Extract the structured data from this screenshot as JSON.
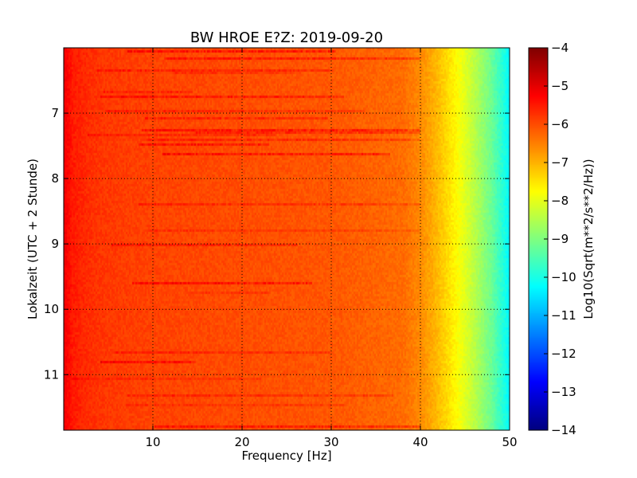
{
  "chart_data": {
    "type": "heatmap",
    "title": "BW HROE E?Z: 2019-09-20",
    "xlabel": "Frequency [Hz]",
    "ylabel": "Lokalzeit (UTC + 2 Stunde)",
    "xlim": [
      0,
      50
    ],
    "ylim": [
      11.85,
      6.0
    ],
    "x_ticks": [
      10,
      20,
      30,
      40,
      50
    ],
    "y_ticks": [
      7,
      8,
      9,
      10,
      11
    ],
    "x_tick_labels": [
      "10",
      "20",
      "30",
      "40",
      "50"
    ],
    "y_tick_labels": [
      "7",
      "8",
      "9",
      "10",
      "11"
    ],
    "grid": true,
    "colormap": "jet",
    "colorbar": {
      "label": "Log10(Sqrt(m**2/s**2/Hz))",
      "range": [
        -14,
        -4
      ],
      "ticks": [
        -4,
        -5,
        -6,
        -7,
        -8,
        -9,
        -10,
        -11,
        -12,
        -13,
        -14
      ],
      "tick_labels": [
        "−4",
        "−5",
        "−6",
        "−7",
        "−8",
        "−9",
        "−10",
        "−11",
        "−12",
        "−13",
        "−14"
      ]
    },
    "spectral_profile": {
      "frequency_hz": [
        0,
        1,
        3,
        5,
        10,
        20,
        30,
        38,
        40,
        42,
        44,
        46,
        48,
        50
      ],
      "log_amplitude": [
        -5.1,
        -5.5,
        -5.7,
        -5.8,
        -5.9,
        -6.0,
        -6.1,
        -6.3,
        -6.6,
        -7.1,
        -7.7,
        -8.4,
        -9.2,
        -10.3
      ]
    }
  }
}
